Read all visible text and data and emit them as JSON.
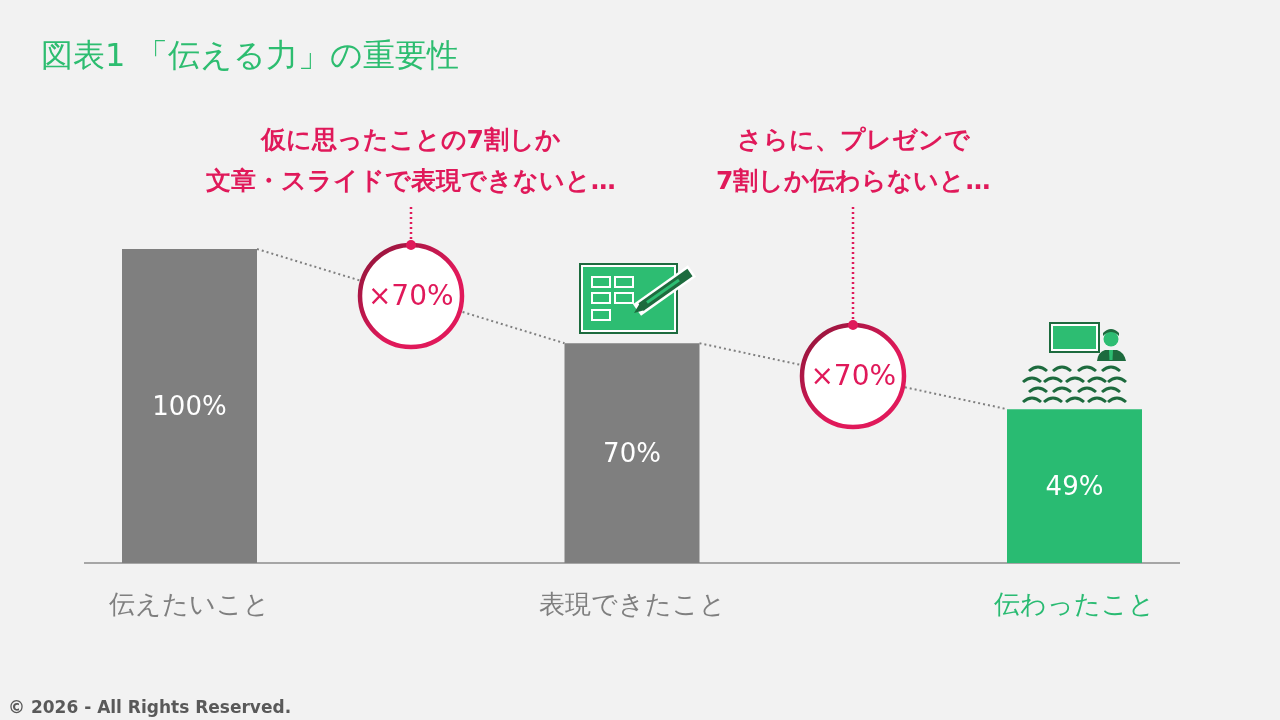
{
  "chart_data": {
    "type": "bar",
    "title": "図表1 「伝える力」の重要性",
    "categories": [
      "伝えたいこと",
      "表現できたこと",
      "伝わったこと"
    ],
    "values": [
      100,
      70,
      49
    ],
    "colors": [
      "#7f7f7f",
      "#7f7f7f",
      "#29bb72"
    ],
    "value_labels": [
      "100%",
      "70%",
      "49%"
    ],
    "annotations": [
      "仮に思ったことの7割しか文章・スライドで表現できないと…",
      "×70%",
      "さらに、プレゼンで7割しか伝わらないと…",
      "×70%",
      "© 2026 - All Rights Reserved."
    ]
  }
}
